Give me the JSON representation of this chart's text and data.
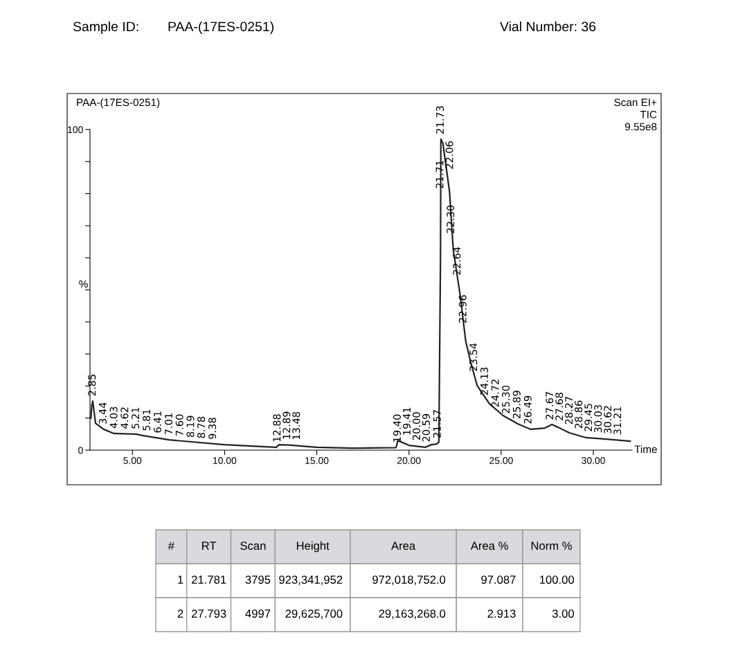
{
  "chart_data": [
    {
      "type": "line",
      "title": "PAA-(17ES-0251)",
      "xlabel": "Time",
      "ylabel": "%",
      "xlim": [
        2.7,
        32.1
      ],
      "ylim": [
        0,
        100
      ],
      "xticks": [
        {
          "value": 5,
          "label": "5.00"
        },
        {
          "value": 10,
          "label": "10.00"
        },
        {
          "value": 15,
          "label": "15.00"
        },
        {
          "value": 20,
          "label": "20.00"
        },
        {
          "value": 25,
          "label": "25.00"
        },
        {
          "value": 30,
          "label": "30.00"
        }
      ],
      "yticks": [
        0,
        {
          "value": 10,
          "label": null
        },
        {
          "value": 20,
          "label": null
        },
        {
          "value": 30,
          "label": null
        },
        {
          "value": 40,
          "label": null
        },
        {
          "value": 50,
          "label": null
        },
        {
          "value": 60,
          "label": null
        },
        {
          "value": 70,
          "label": null
        },
        {
          "value": 80,
          "label": null
        },
        {
          "value": 90,
          "label": null
        },
        100
      ],
      "grid": false,
      "marker": "none",
      "line_style": "solid",
      "series": [
        {
          "color": "#222222",
          "x": [
            2.75,
            2.8,
            2.85,
            3.0,
            3.44,
            4.0,
            5.2,
            5.6,
            7.0,
            10.0,
            12.8,
            12.95,
            13.5,
            15.0,
            17.0,
            19.3,
            19.4,
            20.0,
            20.9,
            21.2,
            21.5,
            21.62,
            21.71,
            21.73,
            21.84,
            22.2,
            22.4,
            22.78,
            23.08,
            23.35,
            23.7,
            24.36,
            25.1,
            25.9,
            26.6,
            27.37,
            27.75,
            28.1,
            28.7,
            29.6,
            30.6,
            32.0
          ],
          "values": [
            10,
            14,
            15.3,
            8.4,
            6.5,
            5.2,
            5.0,
            4.5,
            3.2,
            1.7,
            0.9,
            1.7,
            1.6,
            0.9,
            0.6,
            0.8,
            3.0,
            1.5,
            0.9,
            1.7,
            1.9,
            2.5,
            60,
            97,
            95.7,
            80.6,
            62.6,
            48.2,
            33.9,
            27.4,
            20.1,
            14.5,
            10.8,
            8.2,
            6.5,
            6.9,
            8.0,
            7.1,
            5.4,
            3.9,
            3.5,
            2.8
          ]
        }
      ],
      "annotations": [
        {
          "text": "2.85",
          "x": 2.85,
          "y": 15.3
        },
        {
          "text": "3.44",
          "x": 3.44,
          "y": 6.5
        },
        {
          "text": "4.03",
          "x": 4.03,
          "y": 5.2
        },
        {
          "text": "4.62",
          "x": 4.62,
          "y": 5.1
        },
        {
          "text": "5.21",
          "x": 5.21,
          "y": 5.0
        },
        {
          "text": "5.81",
          "x": 5.81,
          "y": 4.4
        },
        {
          "text": "6.41",
          "x": 6.41,
          "y": 3.8
        },
        {
          "text": "7.01",
          "x": 7.01,
          "y": 3.2
        },
        {
          "text": "7.60",
          "x": 7.6,
          "y": 2.8
        },
        {
          "text": "8.19",
          "x": 8.19,
          "y": 2.4
        },
        {
          "text": "8.78",
          "x": 8.78,
          "y": 2.1
        },
        {
          "text": "9.38",
          "x": 9.38,
          "y": 1.8
        },
        {
          "text": "12.88",
          "x": 12.88,
          "y": 0.9
        },
        {
          "text": "12.89",
          "x": 12.89,
          "y": 1.7
        },
        {
          "text": "13.48",
          "x": 13.48,
          "y": 1.6
        },
        {
          "text": "19.40",
          "x": 19.4,
          "y": 0.8
        },
        {
          "text": "19.41",
          "x": 19.41,
          "y": 3.0
        },
        {
          "text": "20.00",
          "x": 20.0,
          "y": 1.5
        },
        {
          "text": "20.59",
          "x": 20.59,
          "y": 1.0
        },
        {
          "text": "21.57",
          "x": 21.57,
          "y": 2.2
        },
        {
          "text": "21.71",
          "x": 21.71,
          "y": 80
        },
        {
          "text": "21.73",
          "x": 21.73,
          "y": 97
        },
        {
          "text": "22.06",
          "x": 22.06,
          "y": 86
        },
        {
          "text": "22.30",
          "x": 22.3,
          "y": 66
        },
        {
          "text": "22.64",
          "x": 22.64,
          "y": 53
        },
        {
          "text": "22.96",
          "x": 22.96,
          "y": 38
        },
        {
          "text": "23.54",
          "x": 23.54,
          "y": 23
        },
        {
          "text": "24.13",
          "x": 24.13,
          "y": 15.5
        },
        {
          "text": "24.72",
          "x": 24.72,
          "y": 11.8
        },
        {
          "text": "25.30",
          "x": 25.3,
          "y": 9.8
        },
        {
          "text": "25.89",
          "x": 25.89,
          "y": 8.2
        },
        {
          "text": "26.49",
          "x": 26.49,
          "y": 6.6
        },
        {
          "text": "27.67",
          "x": 27.67,
          "y": 7.9
        },
        {
          "text": "27.68",
          "x": 27.68,
          "y": 7.6
        },
        {
          "text": "28.27",
          "x": 28.27,
          "y": 6.4
        },
        {
          "text": "28.86",
          "x": 28.86,
          "y": 5.1
        },
        {
          "text": "29.45",
          "x": 29.45,
          "y": 4.2
        },
        {
          "text": "30.03",
          "x": 30.03,
          "y": 3.8
        },
        {
          "text": "30.62",
          "x": 30.62,
          "y": 3.5
        },
        {
          "text": "31.21",
          "x": 31.21,
          "y": 3.2
        },
        "Scan EI+\nTIC\n9.55e8",
        "Sample ID:",
        "PAA-(17ES-0251)",
        "Vial Number: 36"
      ]
    },
    {
      "type": "other",
      "categories": [
        "#",
        "RT",
        "Scan",
        "Height",
        "Area",
        "Area %",
        "Norm %"
      ],
      "annotations": [
        "1",
        "21.781",
        "3795",
        "923,341,952",
        "972,018,752.0",
        "97.087",
        "100.00",
        "2",
        "27.793",
        "4997",
        "29,625,700",
        "29,163,268.0",
        "2.913",
        "3.00"
      ]
    }
  ]
}
